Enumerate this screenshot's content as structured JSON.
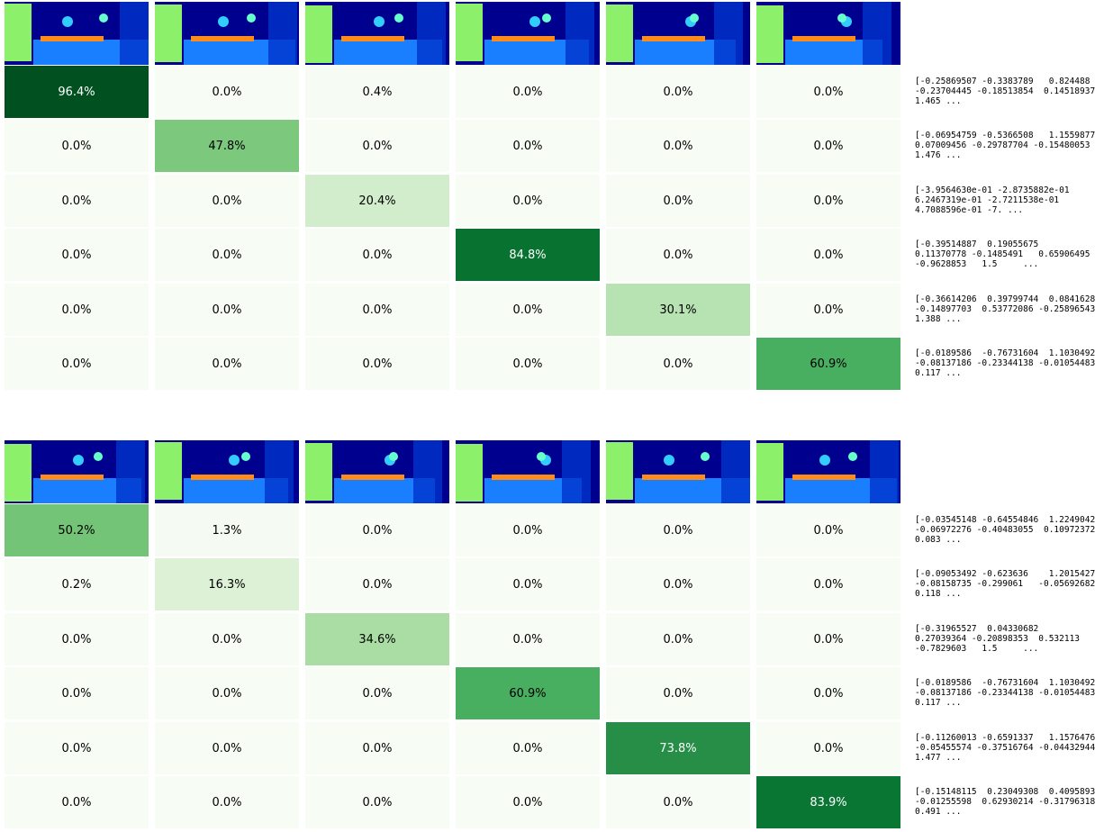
{
  "panels": [
    {
      "rows": [
        [
          "96.4%",
          "0.0%",
          "0.4%",
          "0.0%",
          "0.0%",
          "0.0%"
        ],
        [
          "0.0%",
          "47.8%",
          "0.0%",
          "0.0%",
          "0.0%",
          "0.0%"
        ],
        [
          "0.0%",
          "0.0%",
          "20.4%",
          "0.0%",
          "0.0%",
          "0.0%"
        ],
        [
          "0.0%",
          "0.0%",
          "0.0%",
          "84.8%",
          "0.0%",
          "0.0%"
        ],
        [
          "0.0%",
          "0.0%",
          "0.0%",
          "0.0%",
          "30.1%",
          "0.0%"
        ],
        [
          "0.0%",
          "0.0%",
          "0.0%",
          "0.0%",
          "0.0%",
          "60.9%"
        ]
      ],
      "vectors": [
        [
          "[-0.25869507 -0.3383789   0.824488",
          "-0.23704445 -0.18513854  0.14518937",
          "1.465 ..."
        ],
        [
          "[-0.06954759 -0.5366508   1.1559877",
          "0.07009456 -0.29787704 -0.15480053",
          "1.476 ..."
        ],
        [
          "[-3.9564630e-01 -2.8735882e-01",
          "6.2467319e-01 -2.7211538e-01",
          "4.7088596e-01 -7. ..."
        ],
        [
          "[-0.39514887  0.19055675",
          "0.11370778 -0.1485491   0.65906495",
          "-0.9628853   1.5     ..."
        ],
        [
          "[-0.36614206  0.39799744  0.0841628",
          "-0.14897703  0.53772086 -0.25896543",
          "1.388 ..."
        ],
        [
          "[-0.0189586  -0.76731604  1.1030492",
          "-0.08137186 -0.23344138 -0.01054483",
          "0.117 ..."
        ]
      ]
    },
    {
      "rows": [
        [
          "50.2%",
          "1.3%",
          "0.0%",
          "0.0%",
          "0.0%",
          "0.0%"
        ],
        [
          "0.2%",
          "16.3%",
          "0.0%",
          "0.0%",
          "0.0%",
          "0.0%"
        ],
        [
          "0.0%",
          "0.0%",
          "34.6%",
          "0.0%",
          "0.0%",
          "0.0%"
        ],
        [
          "0.0%",
          "0.0%",
          "0.0%",
          "60.9%",
          "0.0%",
          "0.0%"
        ],
        [
          "0.0%",
          "0.0%",
          "0.0%",
          "0.0%",
          "73.8%",
          "0.0%"
        ],
        [
          "0.0%",
          "0.0%",
          "0.0%",
          "0.0%",
          "0.0%",
          "83.9%"
        ]
      ],
      "vectors": [
        [
          "[-0.03545148 -0.64554846  1.2249042",
          "-0.06972276 -0.40483055  0.10972372",
          "0.083 ..."
        ],
        [
          "[-0.09053492 -0.623636    1.2015427",
          "-0.08158735 -0.299061   -0.05692682",
          "0.118 ..."
        ],
        [
          "[-0.31965527  0.04330682",
          "0.27039364 -0.20898353  0.532113",
          "-0.7829603   1.5     ..."
        ],
        [
          "[-0.0189586  -0.76731604  1.1030492",
          "-0.08137186 -0.23344138 -0.01054483",
          "0.117 ..."
        ],
        [
          "[-0.11260013 -0.6591337   1.1576476",
          "-0.05455574 -0.37516764 -0.04432944",
          "1.477 ..."
        ],
        [
          "[-0.15148115  0.23049308  0.4095893",
          "-0.01255598  0.62930214 -0.31796318",
          "0.491 ..."
        ]
      ]
    }
  ]
}
